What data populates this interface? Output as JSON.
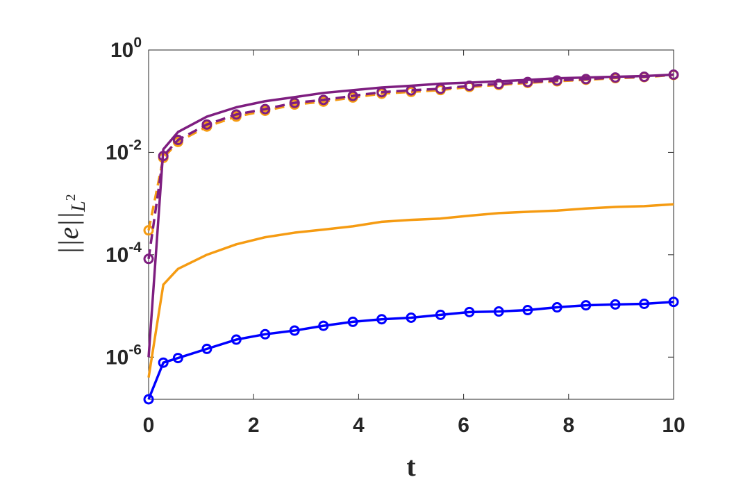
{
  "chart_data": {
    "type": "line",
    "xlabel": "t",
    "ylabel": {
      "text": "||e||",
      "sub": "L",
      "sup": "2"
    },
    "yscale": "log",
    "x": [
      0,
      0.28,
      0.56,
      1.11,
      1.67,
      2.22,
      2.78,
      3.33,
      3.89,
      4.44,
      5,
      5.56,
      6.11,
      6.67,
      7.22,
      7.78,
      8.33,
      8.89,
      9.44,
      10
    ],
    "xlim": [
      0,
      10
    ],
    "xticks": [
      0,
      2,
      4,
      6,
      8,
      10
    ],
    "ylim": [
      1.5e-07,
      1
    ],
    "yticks": [
      {
        "value": 1e-06,
        "label": "10^-6"
      },
      {
        "value": 0.0001,
        "label": "10^-4"
      },
      {
        "value": 0.01,
        "label": "10^-2"
      },
      {
        "value": 1,
        "label": "10^0"
      }
    ],
    "series": [
      {
        "color": "#0000ff",
        "line": "solid",
        "marker": "o",
        "values": [
          1.5e-07,
          7.8e-07,
          9.6e-07,
          1.45e-06,
          2.2e-06,
          2.8e-06,
          3.3e-06,
          4.1e-06,
          4.9e-06,
          5.5e-06,
          5.9e-06,
          6.7e-06,
          7.6e-06,
          7.8e-06,
          8.3e-06,
          9.4e-06,
          1.03e-05,
          1.07e-05,
          1.1e-05,
          1.2e-05
        ]
      },
      {
        "color": "#f59b12",
        "line": "solid",
        "marker": null,
        "values": [
          4e-07,
          2.6e-05,
          5.3e-05,
          0.0001,
          0.00016,
          0.00022,
          0.00027,
          0.00031,
          0.00036,
          0.00044,
          0.00048,
          0.00051,
          0.00058,
          0.00065,
          0.00069,
          0.00073,
          0.0008,
          0.00086,
          0.00089,
          0.00097
        ]
      },
      {
        "color": "#f59b12",
        "line": "dashed",
        "marker": "o",
        "values": [
          0.0003,
          0.0078,
          0.016,
          0.032,
          0.05,
          0.065,
          0.086,
          0.098,
          0.118,
          0.14,
          0.152,
          0.165,
          0.19,
          0.208,
          0.228,
          0.245,
          0.262,
          0.282,
          0.295,
          0.325
        ]
      },
      {
        "color": "#7e1e80",
        "line": "dashed",
        "marker": "o",
        "values": [
          8.3e-05,
          0.0085,
          0.0175,
          0.035,
          0.055,
          0.07,
          0.093,
          0.106,
          0.127,
          0.15,
          0.163,
          0.175,
          0.2,
          0.217,
          0.237,
          0.254,
          0.27,
          0.29,
          0.3,
          0.33
        ]
      },
      {
        "color": "#7e1e80",
        "line": "solid",
        "marker": null,
        "values": [
          1e-06,
          0.0115,
          0.025,
          0.05,
          0.076,
          0.1,
          0.12,
          0.145,
          0.164,
          0.185,
          0.2,
          0.22,
          0.23,
          0.245,
          0.26,
          0.28,
          0.29,
          0.3,
          0.31,
          0.33
        ]
      }
    ]
  }
}
